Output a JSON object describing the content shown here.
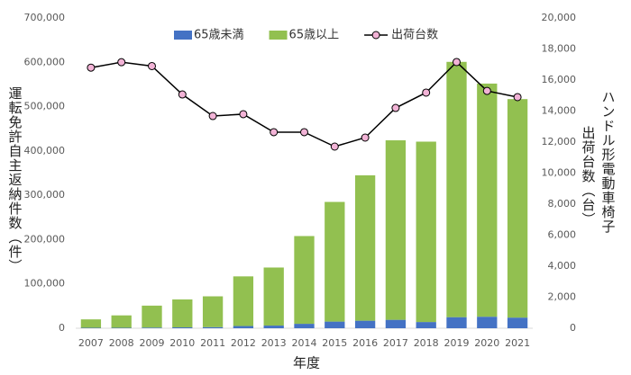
{
  "chart_data": {
    "type": "bar",
    "stacked": true,
    "categories": [
      "2007",
      "2008",
      "2009",
      "2010",
      "2011",
      "2012",
      "2013",
      "2014",
      "2015",
      "2016",
      "2017",
      "2018",
      "2019",
      "2020",
      "2021"
    ],
    "series": [
      {
        "name": "65歳未満",
        "color": "#4472c4",
        "values": [
          1000,
          1000,
          1500,
          2000,
          2500,
          5000,
          6000,
          10000,
          15000,
          17000,
          19000,
          14000,
          25000,
          26000,
          24000
        ]
      },
      {
        "name": "65歳以上",
        "color": "#92c050",
        "values": [
          19000,
          28000,
          49500,
          63000,
          69500,
          112000,
          131000,
          198000,
          270000,
          328000,
          405000,
          407000,
          576000,
          526000,
          493000
        ]
      },
      {
        "name": "出荷台数",
        "type": "line",
        "axis": "y2",
        "color": "#000000",
        "marker_color": "#f2b3d6",
        "values": [
          16800,
          17150,
          16900,
          15070,
          13680,
          13800,
          12640,
          12640,
          11710,
          12290,
          14200,
          15190,
          17160,
          15300,
          14900
        ]
      }
    ],
    "ylim": [
      0,
      700000
    ],
    "yticks": [
      0,
      {
        "value": 100000,
        "label": "100,000"
      },
      {
        "value": 200000,
        "label": "200,000"
      },
      {
        "value": 300000,
        "label": "300,000"
      },
      {
        "value": 400000,
        "label": "400,000"
      },
      {
        "value": 500000,
        "label": "500,000"
      },
      {
        "value": 600000,
        "label": "600,000"
      },
      {
        "value": 700000,
        "label": "700,000"
      }
    ],
    "y2lim": [
      0,
      20000
    ],
    "y2ticks": [
      0,
      {
        "value": 2000,
        "label": "2,000"
      },
      {
        "value": 4000,
        "label": "4,000"
      },
      {
        "value": 6000,
        "label": "6,000"
      },
      {
        "value": 8000,
        "label": "8,000"
      },
      {
        "value": 10000,
        "label": "10,000"
      },
      {
        "value": 12000,
        "label": "12,000"
      },
      {
        "value": 14000,
        "label": "14,000"
      },
      {
        "value": 16000,
        "label": "16,000"
      },
      {
        "value": 18000,
        "label": "18,000"
      },
      {
        "value": 20000,
        "label": "20,000"
      }
    ],
    "xlabel": "年度",
    "ylabel": "運転免許自主返納件数（件）",
    "y2label": [
      "ハンドル形電動車椅子",
      "出荷台数（台）"
    ],
    "legend": "top"
  }
}
